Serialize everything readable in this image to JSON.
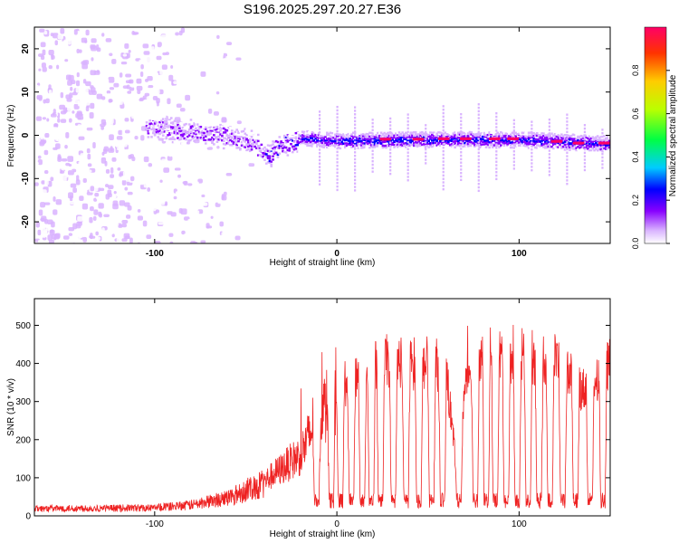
{
  "title": "S196.2025.297.20.27.E36",
  "chart_data": [
    {
      "type": "heatmap",
      "xlabel": "Height of straight line (km)",
      "ylabel": "Frequency (Hz)",
      "xlim": [
        -166,
        150
      ],
      "ylim": [
        -25,
        25
      ],
      "xticks": [
        -100,
        0,
        100
      ],
      "yticks": [
        -20,
        -10,
        0,
        10,
        20
      ],
      "colorbar": {
        "label": "Normalized spectral amplitude",
        "range": [
          0,
          1
        ],
        "ticks": [
          "0.0",
          "0.2",
          "0.4",
          "0.6",
          "0.8"
        ],
        "colors": [
          "#ffffff",
          "#d9b3ff",
          "#8800ff",
          "#0000ff",
          "#00ccff",
          "#00ff44",
          "#bbff00",
          "#ffcc00",
          "#ff3300",
          "#ff0066"
        ]
      },
      "ridge": [
        {
          "x": -100,
          "f": 2
        },
        {
          "x": -80,
          "f": 1
        },
        {
          "x": -60,
          "f": 0
        },
        {
          "x": -45,
          "f": -2
        },
        {
          "x": -38,
          "f": -4.5
        },
        {
          "x": -30,
          "f": -2
        },
        {
          "x": -20,
          "f": -0.5
        },
        {
          "x": 0,
          "f": -1
        },
        {
          "x": 50,
          "f": -0.8
        },
        {
          "x": 100,
          "f": -0.8
        },
        {
          "x": 150,
          "f": -1.8
        }
      ],
      "ridge_peaks": [
        {
          "x": 26,
          "f": -0.9
        },
        {
          "x": 44,
          "f": -0.9
        },
        {
          "x": 58,
          "f": -0.8
        },
        {
          "x": 70,
          "f": -0.8
        },
        {
          "x": 86,
          "f": -0.8
        },
        {
          "x": 96,
          "f": -0.8
        },
        {
          "x": 120,
          "f": -1.4
        },
        {
          "x": 132,
          "f": -1.8
        },
        {
          "x": 146,
          "f": -1.8
        }
      ]
    },
    {
      "type": "line",
      "xlabel": "Height of straight line (km)",
      "ylabel": "SNR (10 * v/v)",
      "xlim": [
        -166,
        150
      ],
      "ylim": [
        0,
        570
      ],
      "xticks": [
        -100,
        0,
        100
      ],
      "yticks": [
        0,
        100,
        200,
        300,
        400,
        500
      ],
      "series": [
        {
          "name": "SNR",
          "color": "#ee2222",
          "envelope": [
            {
              "x": -166,
              "y": 20
            },
            {
              "x": -100,
              "y": 22
            },
            {
              "x": -80,
              "y": 30
            },
            {
              "x": -60,
              "y": 50
            },
            {
              "x": -40,
              "y": 90
            },
            {
              "x": -20,
              "y": 160
            },
            {
              "x": -10,
              "y": 260
            },
            {
              "x": 0,
              "y": 330
            },
            {
              "x": 10,
              "y": 370
            },
            {
              "x": 20,
              "y": 390
            },
            {
              "x": 30,
              "y": 410
            },
            {
              "x": 40,
              "y": 400
            },
            {
              "x": 50,
              "y": 400
            },
            {
              "x": 60,
              "y": 390
            },
            {
              "x": 65,
              "y": 150
            },
            {
              "x": 72,
              "y": 380
            },
            {
              "x": 80,
              "y": 420
            },
            {
              "x": 100,
              "y": 420
            },
            {
              "x": 120,
              "y": 410
            },
            {
              "x": 135,
              "y": 330
            },
            {
              "x": 150,
              "y": 400
            }
          ],
          "dropouts": [
            -11,
            -3,
            2,
            8,
            14,
            19,
            24,
            31,
            38,
            45,
            52,
            58,
            67,
            76,
            82,
            87,
            93,
            99,
            105,
            111,
            117,
            124,
            131,
            139,
            146
          ]
        }
      ]
    }
  ]
}
